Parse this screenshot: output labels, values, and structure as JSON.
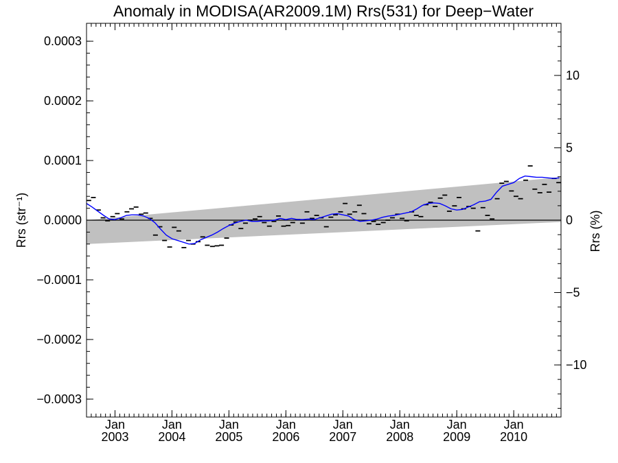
{
  "chart_data": {
    "type": "line",
    "title": "Anomaly in MODISA(AR2009.1M) Rrs(531) for Deep−Water",
    "ylabel_left": "Rrs (str⁻¹)",
    "ylabel_right": "Rrs (%)",
    "xlabel": "",
    "xlim": [
      2002.5,
      2010.83
    ],
    "ylim": [
      -0.00033,
      0.00033
    ],
    "ylim_right": [
      -13.6,
      13.6
    ],
    "grid": false,
    "x_ticks": [
      {
        "month": "Jan",
        "year": "2003"
      },
      {
        "month": "Jan",
        "year": "2004"
      },
      {
        "month": "Jan",
        "year": "2005"
      },
      {
        "month": "Jan",
        "year": "2006"
      },
      {
        "month": "Jan",
        "year": "2007"
      },
      {
        "month": "Jan",
        "year": "2008"
      },
      {
        "month": "Jan",
        "year": "2009"
      },
      {
        "month": "Jan",
        "year": "2010"
      }
    ],
    "y_ticks_left": [
      {
        "value": 0.0003,
        "label": "0.0003"
      },
      {
        "value": 0.0002,
        "label": "0.0002"
      },
      {
        "value": 0.0001,
        "label": "0.0001"
      },
      {
        "value": 0.0,
        "label": "0.0000"
      },
      {
        "value": -0.0001,
        "label": "−0.0001"
      },
      {
        "value": -0.0002,
        "label": "−0.0002"
      },
      {
        "value": -0.0003,
        "label": "−0.0003"
      }
    ],
    "y_ticks_right": [
      {
        "value": 10,
        "label": "10"
      },
      {
        "value": 5,
        "label": "5"
      },
      {
        "value": 0,
        "label": "0"
      },
      {
        "value": -5,
        "label": "−5"
      },
      {
        "value": -10,
        "label": "−10"
      }
    ],
    "uncertainty_band": {
      "x": [
        2002.5,
        2010.83
      ],
      "lower": [
        -4e-05,
        -3e-06
      ],
      "upper": [
        0.0,
        7.2e-05
      ],
      "color": "#c0c0c0"
    },
    "zero_line": {
      "value": 0,
      "color": "#000000"
    },
    "series": [
      {
        "role": "monthly-anomaly",
        "marker": "dash",
        "color": "#000000",
        "x": [
          2002.54,
          2002.62,
          2002.71,
          2002.79,
          2002.87,
          2002.96,
          2003.04,
          2003.12,
          2003.21,
          2003.29,
          2003.37,
          2003.46,
          2003.54,
          2003.62,
          2003.71,
          2003.79,
          2003.87,
          2003.96,
          2004.04,
          2004.12,
          2004.21,
          2004.29,
          2004.37,
          2004.46,
          2004.54,
          2004.62,
          2004.71,
          2004.79,
          2004.87,
          2004.96,
          2005.04,
          2005.12,
          2005.21,
          2005.29,
          2005.37,
          2005.46,
          2005.54,
          2005.62,
          2005.71,
          2005.79,
          2005.87,
          2005.96,
          2006.04,
          2006.12,
          2006.21,
          2006.29,
          2006.37,
          2006.46,
          2006.54,
          2006.62,
          2006.71,
          2006.79,
          2006.87,
          2006.96,
          2007.04,
          2007.12,
          2007.21,
          2007.29,
          2007.37,
          2007.46,
          2007.54,
          2007.62,
          2007.71,
          2007.79,
          2007.87,
          2007.96,
          2008.04,
          2008.12,
          2008.21,
          2008.29,
          2008.37,
          2008.46,
          2008.54,
          2008.62,
          2008.71,
          2008.79,
          2008.87,
          2008.96,
          2009.04,
          2009.12,
          2009.21,
          2009.29,
          2009.37,
          2009.46,
          2009.54,
          2009.62,
          2009.71,
          2009.79,
          2009.87,
          2009.96,
          2010.04,
          2010.12,
          2010.21,
          2010.29,
          2010.37,
          2010.46,
          2010.54,
          2010.62,
          2010.71,
          2010.79
        ],
        "values": [
          3.3e-05,
          3.8e-05,
          1.7e-05,
          4e-06,
          -1e-06,
          6e-06,
          1.1e-05,
          2e-06,
          1.4e-05,
          1.9e-05,
          2.2e-05,
          1e-05,
          1.2e-05,
          3e-06,
          -2.5e-05,
          -1.1e-05,
          -3.4e-05,
          -4.5e-05,
          -1.2e-05,
          -1.8e-05,
          -4.6e-05,
          -3.4e-05,
          -4e-05,
          -3.6e-05,
          -2.8e-05,
          -4.2e-05,
          -4.4e-05,
          -4.3e-05,
          -4.2e-05,
          -3e-05,
          -8e-06,
          -3e-06,
          -1.4e-05,
          -5e-06,
          0.0,
          2e-06,
          6e-06,
          -4e-06,
          -1e-05,
          -2e-06,
          7e-06,
          -1e-05,
          -9e-06,
          -4e-06,
          1e-06,
          -5e-06,
          1.4e-05,
          3e-06,
          8e-06,
          4e-06,
          -1.1e-05,
          5e-06,
          9e-06,
          1.4e-05,
          2.8e-05,
          1e-05,
          1.4e-05,
          2.5e-05,
          1.1e-05,
          -6e-06,
          -2e-06,
          -7e-06,
          -4e-06,
          0.0,
          4e-06,
          1e-05,
          3e-06,
          -1e-06,
          1.4e-05,
          8e-06,
          6e-06,
          2.6e-05,
          3e-05,
          2.3e-05,
          3.7e-05,
          4.2e-05,
          1.5e-05,
          2.4e-05,
          3.8e-05,
          1.9e-05,
          2.3e-05,
          2e-05,
          -1.8e-05,
          2.1e-05,
          8e-06,
          2e-06,
          3.6e-05,
          6.2e-05,
          6.5e-05,
          4.9e-05,
          4e-05,
          3.6e-05,
          6.7e-05,
          9.1e-05,
          5.2e-05,
          4.6e-05,
          6e-05,
          4.7e-05,
          7e-05,
          6.3e-05
        ]
      },
      {
        "role": "running-mean",
        "color": "#0000ff",
        "x": [
          2002.5,
          2002.6,
          2002.7,
          2002.8,
          2002.9,
          2003.0,
          2003.1,
          2003.2,
          2003.3,
          2003.4,
          2003.5,
          2003.6,
          2003.7,
          2003.8,
          2003.9,
          2004.0,
          2004.1,
          2004.2,
          2004.3,
          2004.4,
          2004.5,
          2004.6,
          2004.7,
          2004.8,
          2004.9,
          2005.0,
          2005.1,
          2005.2,
          2005.3,
          2005.4,
          2005.5,
          2005.6,
          2005.7,
          2005.8,
          2005.9,
          2006.0,
          2006.1,
          2006.2,
          2006.3,
          2006.4,
          2006.5,
          2006.6,
          2006.7,
          2006.8,
          2006.9,
          2007.0,
          2007.1,
          2007.2,
          2007.3,
          2007.4,
          2007.5,
          2007.6,
          2007.7,
          2007.8,
          2007.9,
          2008.0,
          2008.1,
          2008.2,
          2008.3,
          2008.4,
          2008.5,
          2008.6,
          2008.7,
          2008.8,
          2008.9,
          2009.0,
          2009.1,
          2009.2,
          2009.3,
          2009.4,
          2009.5,
          2009.6,
          2009.7,
          2009.8,
          2009.9,
          2010.0,
          2010.1,
          2010.2,
          2010.3,
          2010.4,
          2010.5,
          2010.6,
          2010.7,
          2010.8
        ],
        "values": [
          2.8e-05,
          2.2e-05,
          1.5e-05,
          8e-06,
          2e-06,
          1e-06,
          4e-06,
          8e-06,
          9e-06,
          9e-06,
          7e-06,
          3e-06,
          -4e-06,
          -1.5e-05,
          -2.5e-05,
          -3.1e-05,
          -3.4e-05,
          -3.7e-05,
          -4e-05,
          -3.9e-05,
          -3.3e-05,
          -2.9e-05,
          -2.5e-05,
          -2e-05,
          -1.4e-05,
          -9e-06,
          -5e-06,
          -2e-06,
          0.0,
          -2e-06,
          -2e-06,
          -1e-06,
          -1e-06,
          0.0,
          3e-06,
          1e-06,
          3e-06,
          1e-06,
          1e-06,
          2e-06,
          1e-06,
          4e-06,
          7e-06,
          1e-05,
          1.1e-05,
          9e-06,
          7e-06,
          1e-06,
          -2e-06,
          -1e-06,
          -0.0,
          2e-06,
          5e-06,
          7e-06,
          8e-06,
          1e-05,
          1.2e-05,
          1.4e-05,
          1.9e-05,
          2.5e-05,
          2.8e-05,
          2.9e-05,
          2.8e-05,
          2.4e-05,
          1.9e-05,
          1.7e-05,
          1.8e-05,
          2.2e-05,
          2.6e-05,
          3.1e-05,
          3.2e-05,
          3.5e-05,
          4.7e-05,
          5.7e-05,
          6e-05,
          6.3e-05,
          7e-05,
          7.4e-05,
          7.3e-05,
          7.2e-05,
          7.2e-05,
          7.1e-05,
          7e-05,
          7.1e-05
        ],
        "values_note_removed": null
      }
    ]
  }
}
